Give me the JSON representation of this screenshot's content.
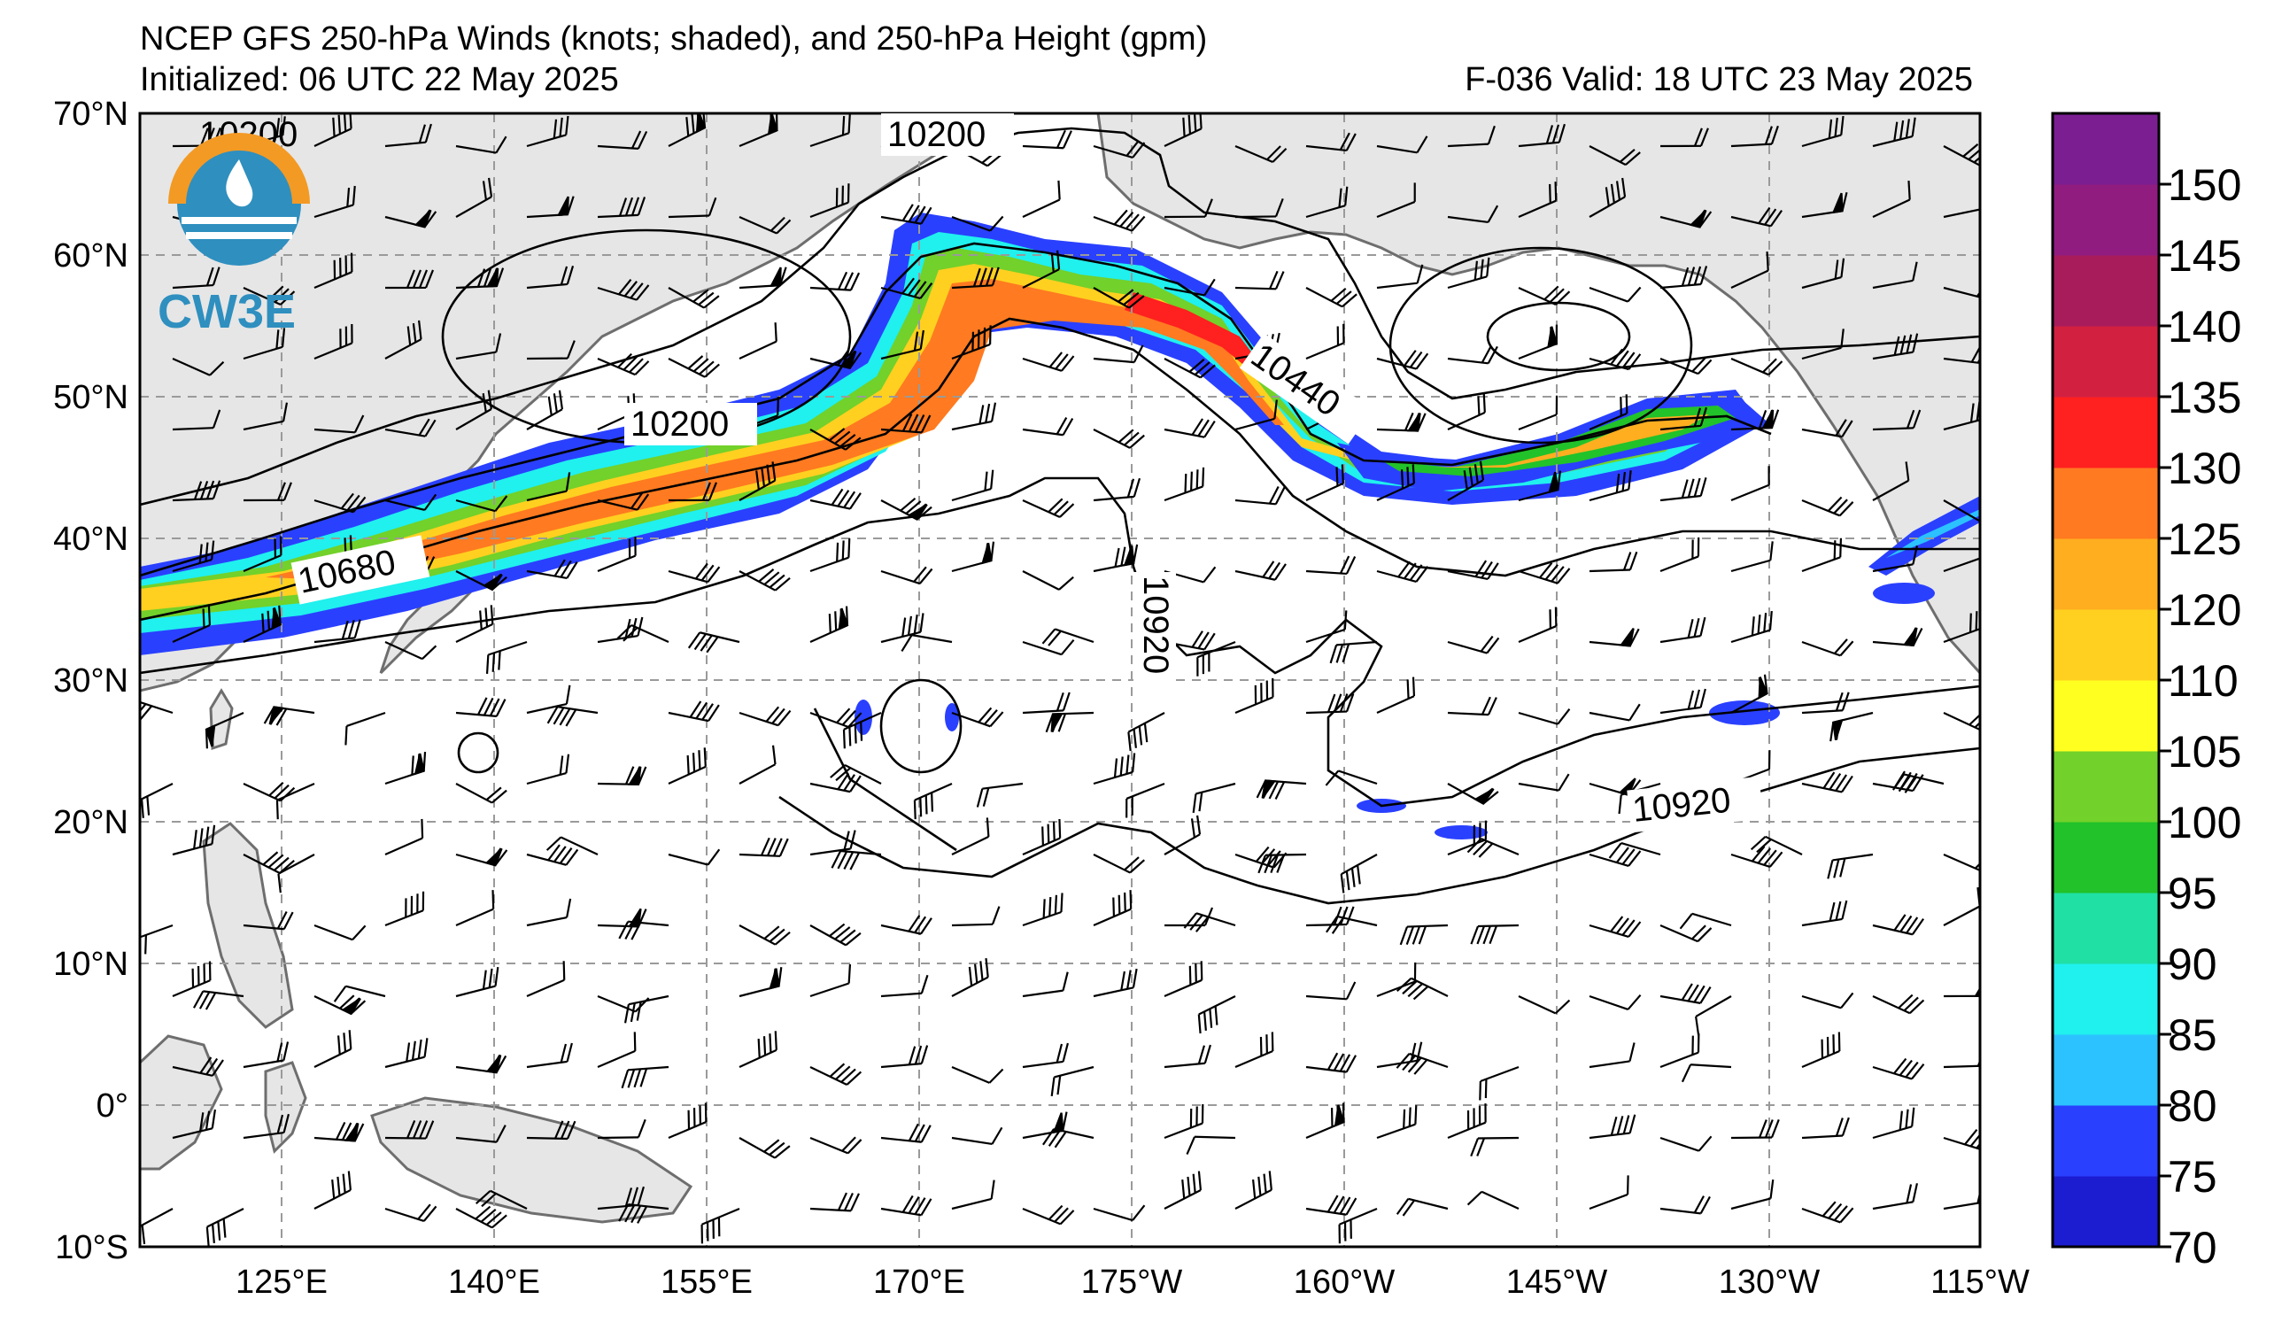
{
  "header": {
    "title": "NCEP GFS 250-hPa Winds (knots; shaded), and 250-hPa Height (gpm)",
    "initialized": "Initialized: 06 UTC 22 May 2025",
    "valid": "F-036  Valid: 18 UTC 23 May 2025"
  },
  "logo": {
    "text": "CW3E",
    "icon": "cw3e-logo-icon"
  },
  "map": {
    "lat_labels": [
      "70°N",
      "60°N",
      "50°N",
      "40°N",
      "30°N",
      "20°N",
      "10°N",
      "0°",
      "10°S"
    ],
    "lon_labels": [
      "125°E",
      "140°E",
      "155°E",
      "170°E",
      "175°W",
      "160°W",
      "145°W",
      "130°W",
      "115°W"
    ],
    "lat_range": [
      -10,
      70
    ],
    "lon_range": [
      115,
      245
    ],
    "gridlines": true,
    "contour_labels": [
      {
        "text": "10200"
      },
      {
        "text": "10200"
      },
      {
        "text": "10680"
      },
      {
        "text": "10440"
      },
      {
        "text": "10920"
      },
      {
        "text": "10920"
      },
      {
        "text": "10200"
      }
    ],
    "colors": {
      "land": "#e6e6e6",
      "coast": "#6e6e6e",
      "grid": "#9a9a9a"
    }
  },
  "colorbar": {
    "labels": [
      "150",
      "145",
      "140",
      "135",
      "130",
      "125",
      "120",
      "110",
      "105",
      "100",
      "95",
      "90",
      "85",
      "80",
      "75",
      "70"
    ],
    "colors": [
      "#1c1cd0",
      "#2a40ff",
      "#2bc2ff",
      "#20f0ee",
      "#20e0a4",
      "#22c22a",
      "#72d12a",
      "#ffff20",
      "#ffd020",
      "#ffae20",
      "#ff7a20",
      "#ff2020",
      "#d22040",
      "#a81c5c",
      "#901c80",
      "#7a1e92"
    ]
  }
}
